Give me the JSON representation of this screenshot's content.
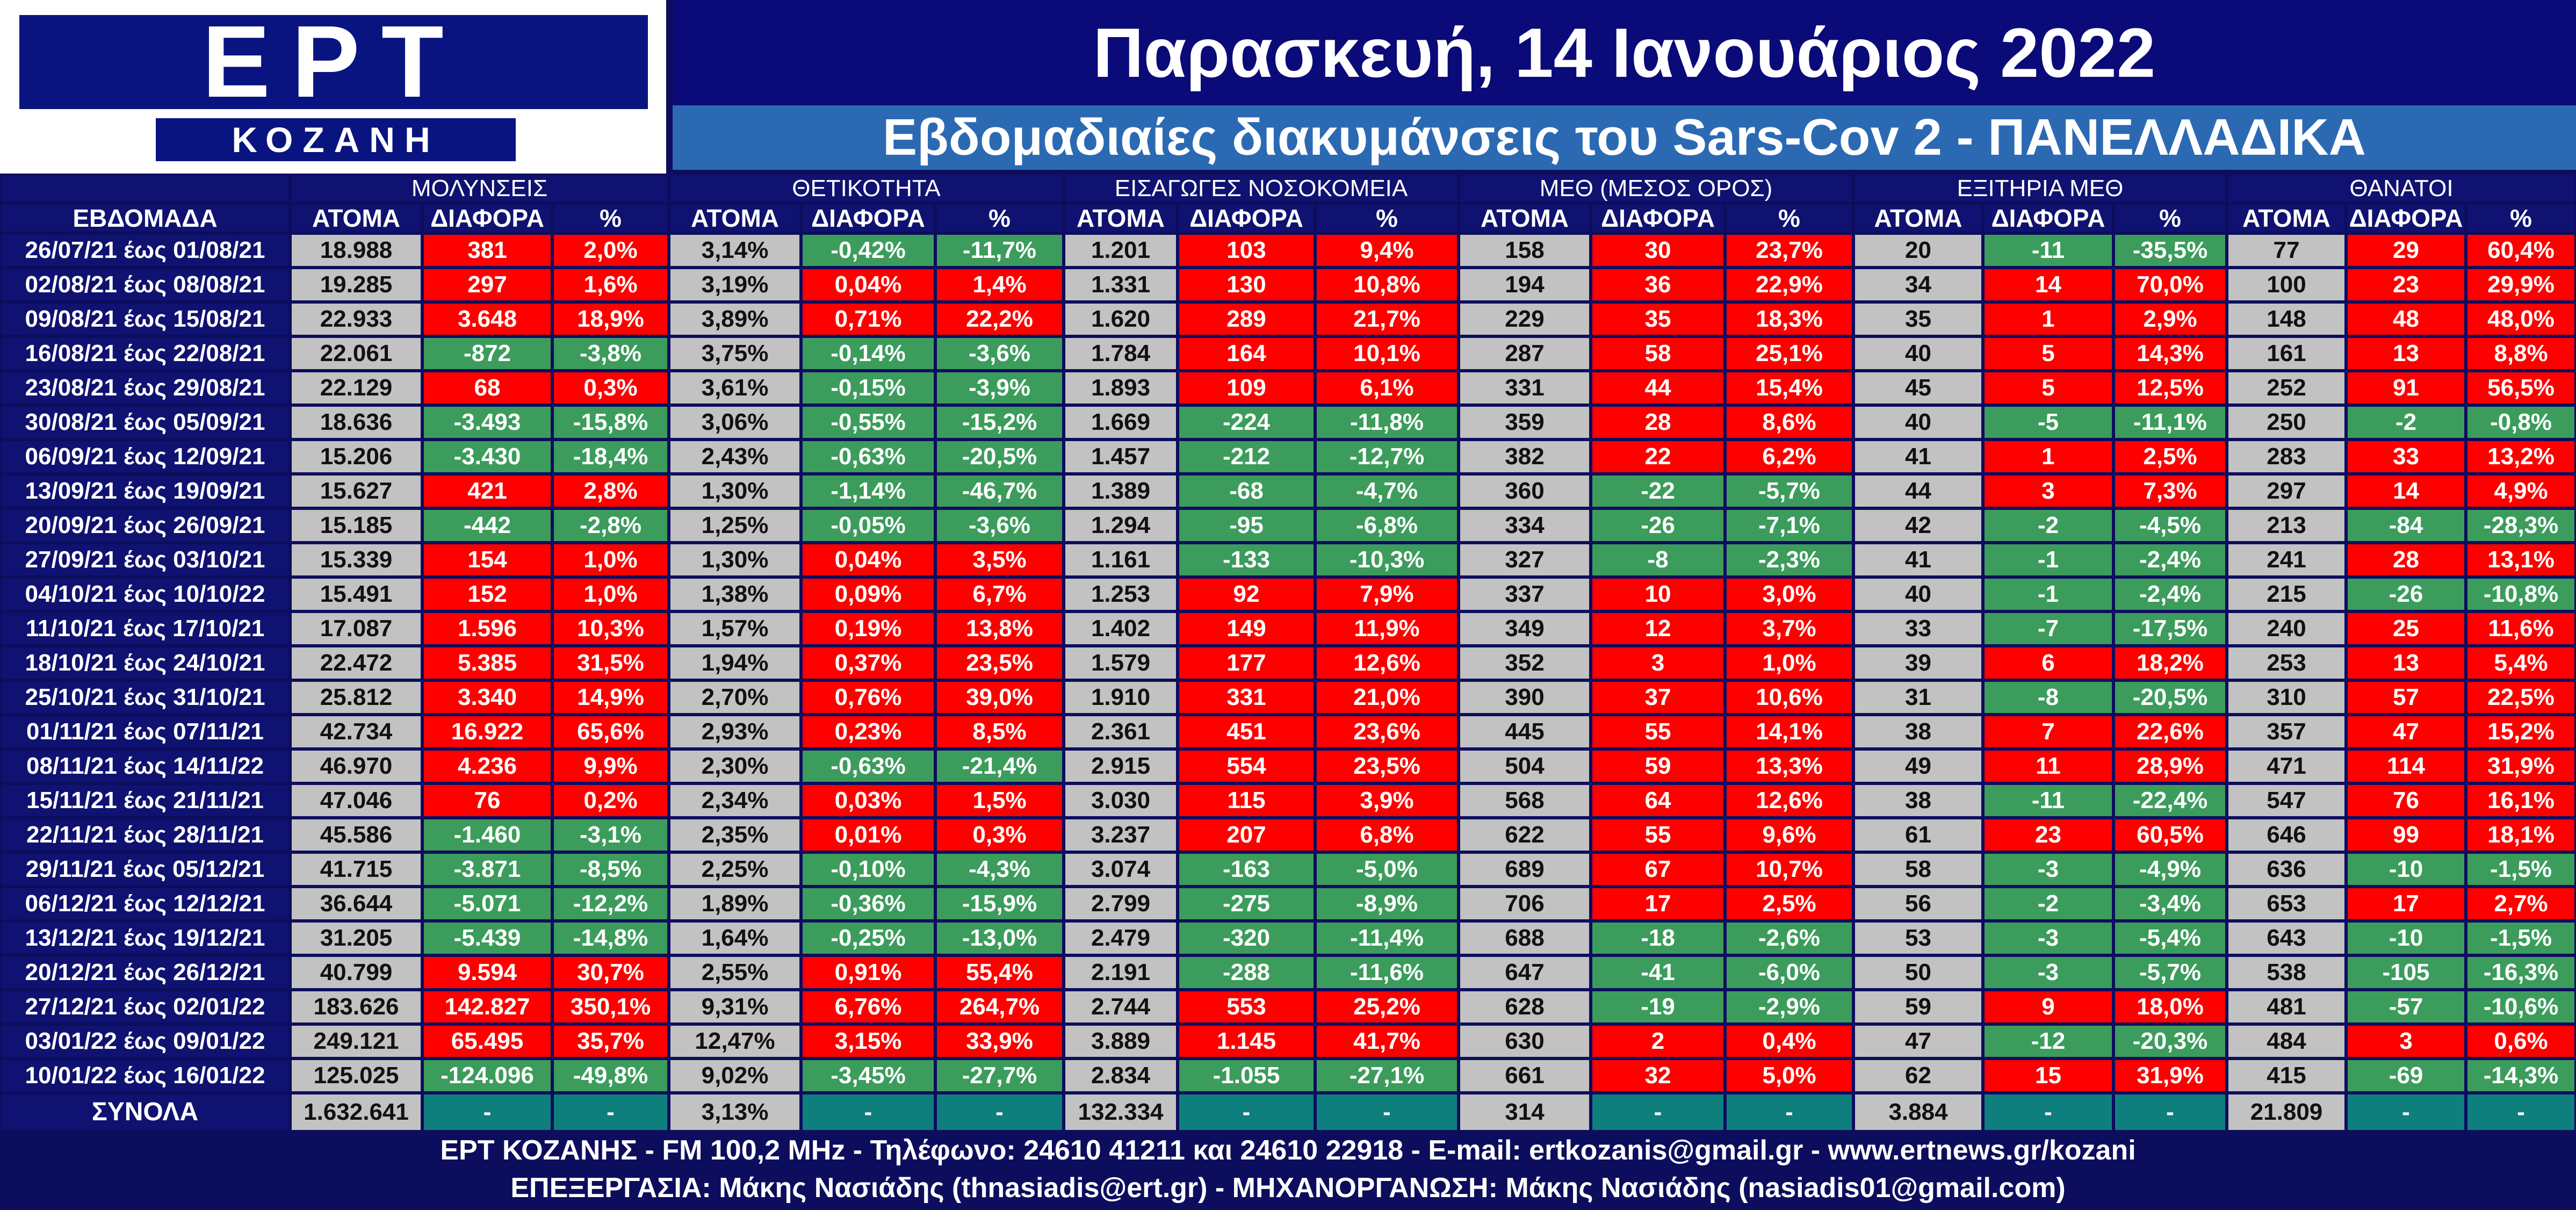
{
  "header": {
    "logo_text": "ΕΡΤ",
    "logo_city": "ΚΟΖΑΝΗ",
    "date_title": "Παρασκευή, 14 Ιανουάριος 2022",
    "subtitle": "Εβδομαδιαίες διακυμάνσεις του Sars-Cov 2 - ΠΑΝΕΛΛΑΔΙΚΑ"
  },
  "colors": {
    "positive_change": "#fe0000",
    "negative_change": "#3c9c5c",
    "value_cell": "#c2c2c2",
    "header": "#0f1270",
    "totals_cell": "#0f7f7d"
  },
  "chart_data": {
    "type": "table",
    "week_header": "ΕΒΔΟΜΑΔΑ",
    "groups": [
      {
        "name": "ΜΟΛΥΝΣΕΙΣ",
        "columns": [
          "ΑΤΟΜΑ",
          "ΔΙΑΦΟΡΑ",
          "%"
        ]
      },
      {
        "name": "ΘΕΤΙΚΟΤΗΤΑ",
        "columns": [
          "ΑΤΟΜΑ",
          "ΔΙΑΦΟΡΑ",
          "%"
        ]
      },
      {
        "name": "ΕΙΣΑΓΩΓΕΣ ΝΟΣΟΚΟΜΕΙΑ",
        "columns": [
          "ΑΤΟΜΑ",
          "ΔΙΑΦΟΡΑ",
          "%"
        ]
      },
      {
        "name": "ΜΕΘ (ΜΕΣΟΣ ΟΡΟΣ)",
        "columns": [
          "ΑΤΟΜΑ",
          "ΔΙΑΦΟΡΑ",
          "%"
        ]
      },
      {
        "name": "ΕΞΙΤΗΡΙΑ ΜΕΘ",
        "columns": [
          "ΑΤΟΜΑ",
          "ΔΙΑΦΟΡΑ",
          "%"
        ]
      },
      {
        "name": "ΘΑΝΑΤΟΙ",
        "columns": [
          "ΑΤΟΜΑ",
          "ΔΙΑΦΟΡΑ",
          "%"
        ]
      }
    ],
    "rows": [
      {
        "week": "26/07/21 έως 01/08/21",
        "cells": [
          "18.988",
          "381",
          "2,0%",
          "3,14%",
          "-0,42%",
          "-11,7%",
          "1.201",
          "103",
          "9,4%",
          "158",
          "30",
          "23,7%",
          "20",
          "-11",
          "-35,5%",
          "77",
          "29",
          "60,4%"
        ]
      },
      {
        "week": "02/08/21 έως 08/08/21",
        "cells": [
          "19.285",
          "297",
          "1,6%",
          "3,19%",
          "0,04%",
          "1,4%",
          "1.331",
          "130",
          "10,8%",
          "194",
          "36",
          "22,9%",
          "34",
          "14",
          "70,0%",
          "100",
          "23",
          "29,9%"
        ]
      },
      {
        "week": "09/08/21 έως 15/08/21",
        "cells": [
          "22.933",
          "3.648",
          "18,9%",
          "3,89%",
          "0,71%",
          "22,2%",
          "1.620",
          "289",
          "21,7%",
          "229",
          "35",
          "18,3%",
          "35",
          "1",
          "2,9%",
          "148",
          "48",
          "48,0%"
        ]
      },
      {
        "week": "16/08/21 έως 22/08/21",
        "cells": [
          "22.061",
          "-872",
          "-3,8%",
          "3,75%",
          "-0,14%",
          "-3,6%",
          "1.784",
          "164",
          "10,1%",
          "287",
          "58",
          "25,1%",
          "40",
          "5",
          "14,3%",
          "161",
          "13",
          "8,8%"
        ]
      },
      {
        "week": "23/08/21 έως 29/08/21",
        "cells": [
          "22.129",
          "68",
          "0,3%",
          "3,61%",
          "-0,15%",
          "-3,9%",
          "1.893",
          "109",
          "6,1%",
          "331",
          "44",
          "15,4%",
          "45",
          "5",
          "12,5%",
          "252",
          "91",
          "56,5%"
        ]
      },
      {
        "week": "30/08/21 έως 05/09/21",
        "cells": [
          "18.636",
          "-3.493",
          "-15,8%",
          "3,06%",
          "-0,55%",
          "-15,2%",
          "1.669",
          "-224",
          "-11,8%",
          "359",
          "28",
          "8,6%",
          "40",
          "-5",
          "-11,1%",
          "250",
          "-2",
          "-0,8%"
        ]
      },
      {
        "week": "06/09/21 έως 12/09/21",
        "cells": [
          "15.206",
          "-3.430",
          "-18,4%",
          "2,43%",
          "-0,63%",
          "-20,5%",
          "1.457",
          "-212",
          "-12,7%",
          "382",
          "22",
          "6,2%",
          "41",
          "1",
          "2,5%",
          "283",
          "33",
          "13,2%"
        ]
      },
      {
        "week": "13/09/21 έως 19/09/21",
        "cells": [
          "15.627",
          "421",
          "2,8%",
          "1,30%",
          "-1,14%",
          "-46,7%",
          "1.389",
          "-68",
          "-4,7%",
          "360",
          "-22",
          "-5,7%",
          "44",
          "3",
          "7,3%",
          "297",
          "14",
          "4,9%"
        ]
      },
      {
        "week": "20/09/21 έως 26/09/21",
        "cells": [
          "15.185",
          "-442",
          "-2,8%",
          "1,25%",
          "-0,05%",
          "-3,6%",
          "1.294",
          "-95",
          "-6,8%",
          "334",
          "-26",
          "-7,1%",
          "42",
          "-2",
          "-4,5%",
          "213",
          "-84",
          "-28,3%"
        ]
      },
      {
        "week": "27/09/21 έως 03/10/21",
        "cells": [
          "15.339",
          "154",
          "1,0%",
          "1,30%",
          "0,04%",
          "3,5%",
          "1.161",
          "-133",
          "-10,3%",
          "327",
          "-8",
          "-2,3%",
          "41",
          "-1",
          "-2,4%",
          "241",
          "28",
          "13,1%"
        ]
      },
      {
        "week": "04/10/21 έως 10/10/22",
        "cells": [
          "15.491",
          "152",
          "1,0%",
          "1,38%",
          "0,09%",
          "6,7%",
          "1.253",
          "92",
          "7,9%",
          "337",
          "10",
          "3,0%",
          "40",
          "-1",
          "-2,4%",
          "215",
          "-26",
          "-10,8%"
        ]
      },
      {
        "week": "11/10/21 έως 17/10/21",
        "cells": [
          "17.087",
          "1.596",
          "10,3%",
          "1,57%",
          "0,19%",
          "13,8%",
          "1.402",
          "149",
          "11,9%",
          "349",
          "12",
          "3,7%",
          "33",
          "-7",
          "-17,5%",
          "240",
          "25",
          "11,6%"
        ]
      },
      {
        "week": "18/10/21 έως 24/10/21",
        "cells": [
          "22.472",
          "5.385",
          "31,5%",
          "1,94%",
          "0,37%",
          "23,5%",
          "1.579",
          "177",
          "12,6%",
          "352",
          "3",
          "1,0%",
          "39",
          "6",
          "18,2%",
          "253",
          "13",
          "5,4%"
        ]
      },
      {
        "week": "25/10/21 έως 31/10/21",
        "cells": [
          "25.812",
          "3.340",
          "14,9%",
          "2,70%",
          "0,76%",
          "39,0%",
          "1.910",
          "331",
          "21,0%",
          "390",
          "37",
          "10,6%",
          "31",
          "-8",
          "-20,5%",
          "310",
          "57",
          "22,5%"
        ]
      },
      {
        "week": "01/11/21 έως 07/11/21",
        "cells": [
          "42.734",
          "16.922",
          "65,6%",
          "2,93%",
          "0,23%",
          "8,5%",
          "2.361",
          "451",
          "23,6%",
          "445",
          "55",
          "14,1%",
          "38",
          "7",
          "22,6%",
          "357",
          "47",
          "15,2%"
        ]
      },
      {
        "week": "08/11/21 έως 14/11/22",
        "cells": [
          "46.970",
          "4.236",
          "9,9%",
          "2,30%",
          "-0,63%",
          "-21,4%",
          "2.915",
          "554",
          "23,5%",
          "504",
          "59",
          "13,3%",
          "49",
          "11",
          "28,9%",
          "471",
          "114",
          "31,9%"
        ]
      },
      {
        "week": "15/11/21 έως 21/11/21",
        "cells": [
          "47.046",
          "76",
          "0,2%",
          "2,34%",
          "0,03%",
          "1,5%",
          "3.030",
          "115",
          "3,9%",
          "568",
          "64",
          "12,6%",
          "38",
          "-11",
          "-22,4%",
          "547",
          "76",
          "16,1%"
        ]
      },
      {
        "week": "22/11/21 έως 28/11/21",
        "cells": [
          "45.586",
          "-1.460",
          "-3,1%",
          "2,35%",
          "0,01%",
          "0,3%",
          "3.237",
          "207",
          "6,8%",
          "622",
          "55",
          "9,6%",
          "61",
          "23",
          "60,5%",
          "646",
          "99",
          "18,1%"
        ]
      },
      {
        "week": "29/11/21 έως 05/12/21",
        "cells": [
          "41.715",
          "-3.871",
          "-8,5%",
          "2,25%",
          "-0,10%",
          "-4,3%",
          "3.074",
          "-163",
          "-5,0%",
          "689",
          "67",
          "10,7%",
          "58",
          "-3",
          "-4,9%",
          "636",
          "-10",
          "-1,5%"
        ]
      },
      {
        "week": "06/12/21 έως 12/12/21",
        "cells": [
          "36.644",
          "-5.071",
          "-12,2%",
          "1,89%",
          "-0,36%",
          "-15,9%",
          "2.799",
          "-275",
          "-8,9%",
          "706",
          "17",
          "2,5%",
          "56",
          "-2",
          "-3,4%",
          "653",
          "17",
          "2,7%"
        ]
      },
      {
        "week": "13/12/21 έως 19/12/21",
        "cells": [
          "31.205",
          "-5.439",
          "-14,8%",
          "1,64%",
          "-0,25%",
          "-13,0%",
          "2.479",
          "-320",
          "-11,4%",
          "688",
          "-18",
          "-2,6%",
          "53",
          "-3",
          "-5,4%",
          "643",
          "-10",
          "-1,5%"
        ]
      },
      {
        "week": "20/12/21 έως 26/12/21",
        "cells": [
          "40.799",
          "9.594",
          "30,7%",
          "2,55%",
          "0,91%",
          "55,4%",
          "2.191",
          "-288",
          "-11,6%",
          "647",
          "-41",
          "-6,0%",
          "50",
          "-3",
          "-5,7%",
          "538",
          "-105",
          "-16,3%"
        ]
      },
      {
        "week": "27/12/21 έως 02/01/22",
        "cells": [
          "183.626",
          "142.827",
          "350,1%",
          "9,31%",
          "6,76%",
          "264,7%",
          "2.744",
          "553",
          "25,2%",
          "628",
          "-19",
          "-2,9%",
          "59",
          "9",
          "18,0%",
          "481",
          "-57",
          "-10,6%"
        ]
      },
      {
        "week": "03/01/22 έως 09/01/22",
        "cells": [
          "249.121",
          "65.495",
          "35,7%",
          "12,47%",
          "3,15%",
          "33,9%",
          "3.889",
          "1.145",
          "41,7%",
          "630",
          "2",
          "0,4%",
          "47",
          "-12",
          "-20,3%",
          "484",
          "3",
          "0,6%"
        ]
      },
      {
        "week": "10/01/22 έως 16/01/22",
        "cells": [
          "125.025",
          "-124.096",
          "-49,8%",
          "9,02%",
          "-3,45%",
          "-27,7%",
          "2.834",
          "-1.055",
          "-27,1%",
          "661",
          "32",
          "5,0%",
          "62",
          "15",
          "31,9%",
          "415",
          "-69",
          "-14,3%"
        ]
      }
    ],
    "totals": {
      "label": "ΣΥΝΟΛΑ",
      "cells": [
        "1.632.641",
        "-",
        "-",
        "3,13%",
        "-",
        "-",
        "132.334",
        "-",
        "-",
        "314",
        "-",
        "-",
        "3.884",
        "-",
        "-",
        "21.809",
        "-",
        "-"
      ]
    }
  },
  "footer": {
    "line1": "ΕΡΤ ΚΟΖΑΝΗΣ - FM 100,2 MHz - Τηλέφωνο:  24610 41211 και 24610 22918 - E-mail: ertkozanis@gmail.gr - www.ertnews.gr/kozani",
    "line2": "ΕΠΕΞΕΡΓΑΣΙΑ: Μάκης Νασιάδης (thnasiadis@ert.gr) - ΜΗΧΑΝΟΡΓΑΝΩΣΗ: Μάκης Νασιάδης (nasiadis01@gmail.com)"
  }
}
